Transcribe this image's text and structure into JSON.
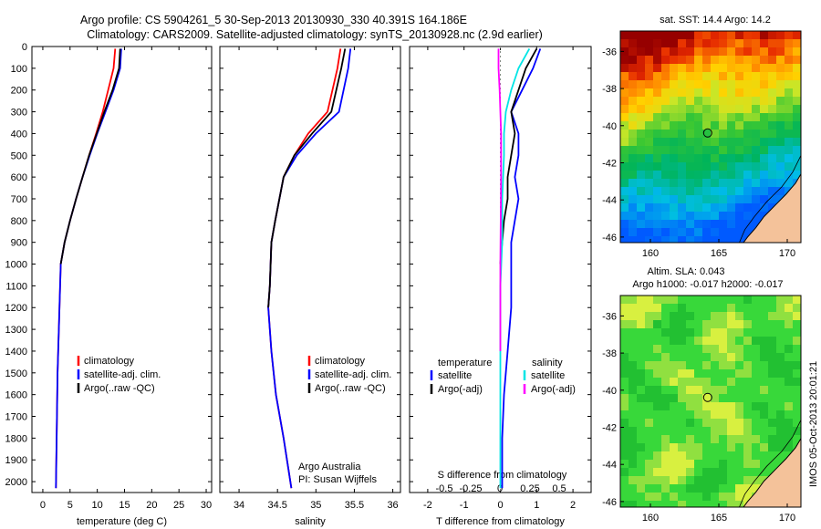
{
  "header": {
    "line1": "Argo profile: CS 5904261_5 30-Sep-2013 20130930_330 40.391S 164.186E",
    "line2": "Climatology: CARS2009. Satellite-adjusted climatology: synTS_20130928.nc (2.9d earlier)"
  },
  "colors": {
    "climatology": "#ff0000",
    "satellite": "#0000ff",
    "argo": "#000000",
    "sal_satellite": "#00e5e5",
    "sal_argo": "#ff00ff",
    "land": "#f4c29a"
  },
  "depth_ticks": [
    0,
    100,
    200,
    300,
    400,
    500,
    600,
    700,
    800,
    900,
    1000,
    1100,
    1200,
    1300,
    1400,
    1500,
    1600,
    1700,
    1800,
    1900,
    2000
  ],
  "legend_profile": [
    "climatology",
    "satellite-adj. clim.",
    "Argo(..raw -QC)"
  ],
  "legend_diff": {
    "temperature_title": "temperature",
    "salinity_title": "salinity",
    "temperature_items": [
      "satellite",
      "Argo(-adj)"
    ],
    "salinity_items": [
      "satellite",
      "Argo(-adj)"
    ]
  },
  "credit": {
    "line1": "Argo Australia",
    "line2": "PI: Susan Wijffels"
  },
  "chart_data": [
    {
      "type": "line",
      "xlabel": "temperature (deg C)",
      "ylabel": "",
      "xlim": [
        -2,
        31
      ],
      "ylim": [
        2050,
        0
      ],
      "xticks": [
        0,
        5,
        10,
        15,
        20,
        25,
        30
      ],
      "series": [
        {
          "name": "climatology",
          "x": [
            13.3,
            13.0,
            12.0,
            11.0,
            9.8,
            8.5,
            7.3,
            6.1,
            5.0,
            4.0,
            3.3,
            2.7,
            2.4
          ],
          "y": [
            10,
            100,
            200,
            300,
            400,
            500,
            600,
            700,
            800,
            900,
            1000,
            1500,
            2030
          ]
        },
        {
          "name": "satellite-adj. clim.",
          "x": [
            14.4,
            14.2,
            13.0,
            11.5,
            10.0,
            8.6,
            7.3,
            6.1,
            5.0,
            4.0,
            3.3,
            2.7,
            2.4
          ],
          "y": [
            10,
            100,
            200,
            300,
            400,
            500,
            600,
            700,
            800,
            900,
            1000,
            1500,
            2030
          ]
        },
        {
          "name": "Argo(..raw -QC)",
          "x": [
            14.2,
            14.0,
            12.8,
            11.3,
            9.9,
            8.5,
            7.3,
            6.1,
            5.0,
            4.0,
            3.3
          ],
          "y": [
            10,
            100,
            200,
            300,
            400,
            500,
            600,
            700,
            800,
            900,
            1000
          ]
        }
      ]
    },
    {
      "type": "line",
      "xlabel": "salinity",
      "ylabel": "",
      "xlim": [
        33.75,
        36.1
      ],
      "ylim": [
        2050,
        0
      ],
      "xticks": [
        34,
        34.5,
        35,
        35.5,
        36
      ],
      "xtick_labels": [
        "34",
        "34.5",
        "35",
        "35.5",
        "36"
      ],
      "series": [
        {
          "name": "climatology",
          "x": [
            35.32,
            35.28,
            35.15,
            34.9,
            34.72,
            34.58,
            34.47,
            34.42,
            34.4,
            34.38,
            34.42,
            34.48,
            34.58,
            34.68
          ],
          "y": [
            10,
            100,
            300,
            400,
            500,
            600,
            800,
            900,
            1100,
            1200,
            1400,
            1600,
            1800,
            2030
          ]
        },
        {
          "name": "satellite-adj. clim.",
          "x": [
            35.45,
            35.42,
            35.3,
            35.0,
            34.75,
            34.58,
            34.47,
            34.42,
            34.4,
            34.38,
            34.42,
            34.48,
            34.58,
            34.68
          ],
          "y": [
            10,
            100,
            300,
            400,
            500,
            600,
            800,
            900,
            1100,
            1200,
            1400,
            1600,
            1800,
            2030
          ]
        },
        {
          "name": "Argo(..raw -QC)",
          "x": [
            35.38,
            35.33,
            35.2,
            34.95,
            34.72,
            34.58,
            34.47,
            34.42,
            34.4,
            34.38
          ],
          "y": [
            10,
            100,
            300,
            400,
            500,
            600,
            800,
            900,
            1100,
            1200
          ]
        }
      ]
    },
    {
      "type": "line",
      "xlabel": "T difference from climatology",
      "ylabel": "",
      "xlim": [
        -2.5,
        2.5
      ],
      "ylim": [
        2050,
        0
      ],
      "xticks": [
        -2,
        -1,
        0,
        1,
        2
      ],
      "secondary_xlabel": "S difference from climatology",
      "secondary_xticks": [
        "-0.5",
        "-0.25",
        "0",
        "0.25",
        "0.5"
      ],
      "series": [
        {
          "name": "temperature satellite",
          "x": [
            1.1,
            0.9,
            0.6,
            0.3,
            0.5,
            0.5,
            0.4,
            0.5,
            0.4,
            0.3,
            0.3,
            0.3,
            0.3,
            0.2,
            0.1,
            0.05,
            0.05
          ],
          "y": [
            10,
            100,
            200,
            300,
            400,
            500,
            600,
            700,
            800,
            900,
            1000,
            1100,
            1200,
            1400,
            1600,
            1800,
            2030
          ]
        },
        {
          "name": "temperature Argo(-adj)",
          "x": [
            1.0,
            0.7,
            0.5,
            0.3,
            0.4,
            0.3,
            0.2,
            0.2,
            0.1,
            0.0
          ],
          "y": [
            10,
            100,
            200,
            300,
            400,
            500,
            600,
            700,
            800,
            1000
          ]
        },
        {
          "name": "salinity satellite",
          "x": [
            0.8,
            0.5,
            0.3,
            0.15,
            0.1,
            0.1,
            0.05,
            0.05,
            0.0,
            0.0,
            0.0,
            0.0,
            0.0
          ],
          "y": [
            10,
            100,
            200,
            300,
            400,
            500,
            700,
            900,
            1100,
            1300,
            1500,
            1800,
            2030
          ]
        },
        {
          "name": "salinity Argo(-adj)",
          "x": [
            -0.05,
            -0.05,
            -0.02,
            0.0,
            0.02,
            0.02,
            0.01,
            0.0,
            0.0,
            0.0
          ],
          "y": [
            10,
            100,
            200,
            300,
            400,
            600,
            800,
            1000,
            1200,
            1400
          ]
        }
      ]
    },
    {
      "type": "heatmap",
      "title": "sat. SST: 14.4 Argo: 14.2",
      "xticks": [
        160,
        165,
        170
      ],
      "yticks": [
        -36,
        -38,
        -40,
        -42,
        -44,
        -46
      ],
      "xlim": [
        157.8,
        171
      ],
      "ylim": [
        -46.3,
        -34.9
      ],
      "marker": {
        "lon": 164.186,
        "lat": -40.391
      }
    },
    {
      "type": "heatmap",
      "title": "Altim. SLA: 0.043",
      "subtitle": "Argo h1000: -0.017 h2000: -0.017",
      "xticks": [
        160,
        165,
        170
      ],
      "yticks": [
        -36,
        -38,
        -40,
        -42,
        -44,
        -46
      ],
      "xlim": [
        157.8,
        171
      ],
      "ylim": [
        -46.3,
        -34.9
      ],
      "marker": {
        "lon": 164.186,
        "lat": -40.391
      }
    }
  ],
  "stamp": "IMOS 05-Oct-2013 20:01:21"
}
